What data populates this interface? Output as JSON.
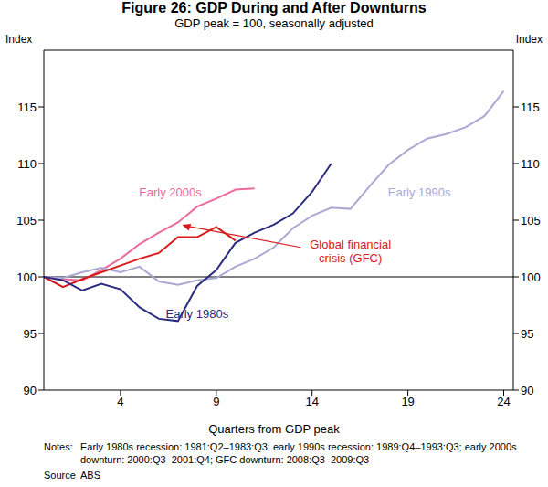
{
  "chart_data": {
    "type": "line",
    "title": "Figure 26: GDP During and After Downturns",
    "subtitle": "GDP peak = 100, seasonally adjusted",
    "y_label": "Index",
    "x_label": "Quarters from GDP peak",
    "x": [
      0,
      1,
      2,
      3,
      4,
      5,
      6,
      7,
      8,
      9,
      10,
      11,
      12,
      13,
      14,
      15,
      16,
      17,
      18,
      19,
      20,
      21,
      22,
      23,
      24
    ],
    "series": [
      {
        "name": "Early 2000s",
        "color": "#ee6a9b",
        "values": [
          100,
          99.8,
          99.7,
          100.6,
          101.6,
          102.9,
          103.9,
          104.8,
          106.2,
          106.9,
          107.7,
          107.8,
          null,
          null,
          null,
          null,
          null,
          null,
          null,
          null,
          null,
          null,
          null,
          null,
          null
        ]
      },
      {
        "name": "Early 1990s",
        "color": "#a9a9d4",
        "values": [
          100,
          99.9,
          100.4,
          100.8,
          100.4,
          100.9,
          99.6,
          99.3,
          99.7,
          99.9,
          100.9,
          101.6,
          102.6,
          104.3,
          105.4,
          106.1,
          106.0,
          108.0,
          109.9,
          111.2,
          112.2,
          112.6,
          113.2,
          114.2,
          116.4
        ]
      },
      {
        "name": "Global financial crisis (GFC)",
        "color": "#d7191c",
        "values": [
          100,
          99.1,
          99.8,
          100.4,
          101.0,
          101.6,
          102.1,
          103.5,
          103.5,
          104.4,
          103.2,
          null,
          null,
          null,
          null,
          null,
          null,
          null,
          null,
          null,
          null,
          null,
          null,
          null,
          null
        ]
      },
      {
        "name": "Early 1980s",
        "color": "#2b2b7f",
        "values": [
          100,
          99.7,
          98.8,
          99.4,
          98.9,
          97.3,
          96.3,
          96.1,
          99.2,
          100.6,
          103.0,
          103.9,
          104.6,
          105.6,
          107.5,
          110.0,
          null,
          null,
          null,
          null,
          null,
          null,
          null,
          null,
          null
        ]
      }
    ],
    "xlim": [
      0,
      24.5
    ],
    "xticks": [
      4,
      9,
      14,
      19,
      24
    ],
    "ylim": [
      90,
      120
    ],
    "yticks": [
      90,
      95,
      100,
      105,
      110,
      115
    ],
    "baseline": 100,
    "grid": false,
    "notes_label": "Notes:",
    "notes": "Early 1980s recession: 1981:Q2–1983:Q3; early 1990s recession: 1989:Q4–1993:Q3; early 2000s downturn: 2000:Q3–2001:Q4; GFC downturn: 2008:Q3–2009:Q3",
    "source_label": "Source",
    "source": "ABS"
  }
}
